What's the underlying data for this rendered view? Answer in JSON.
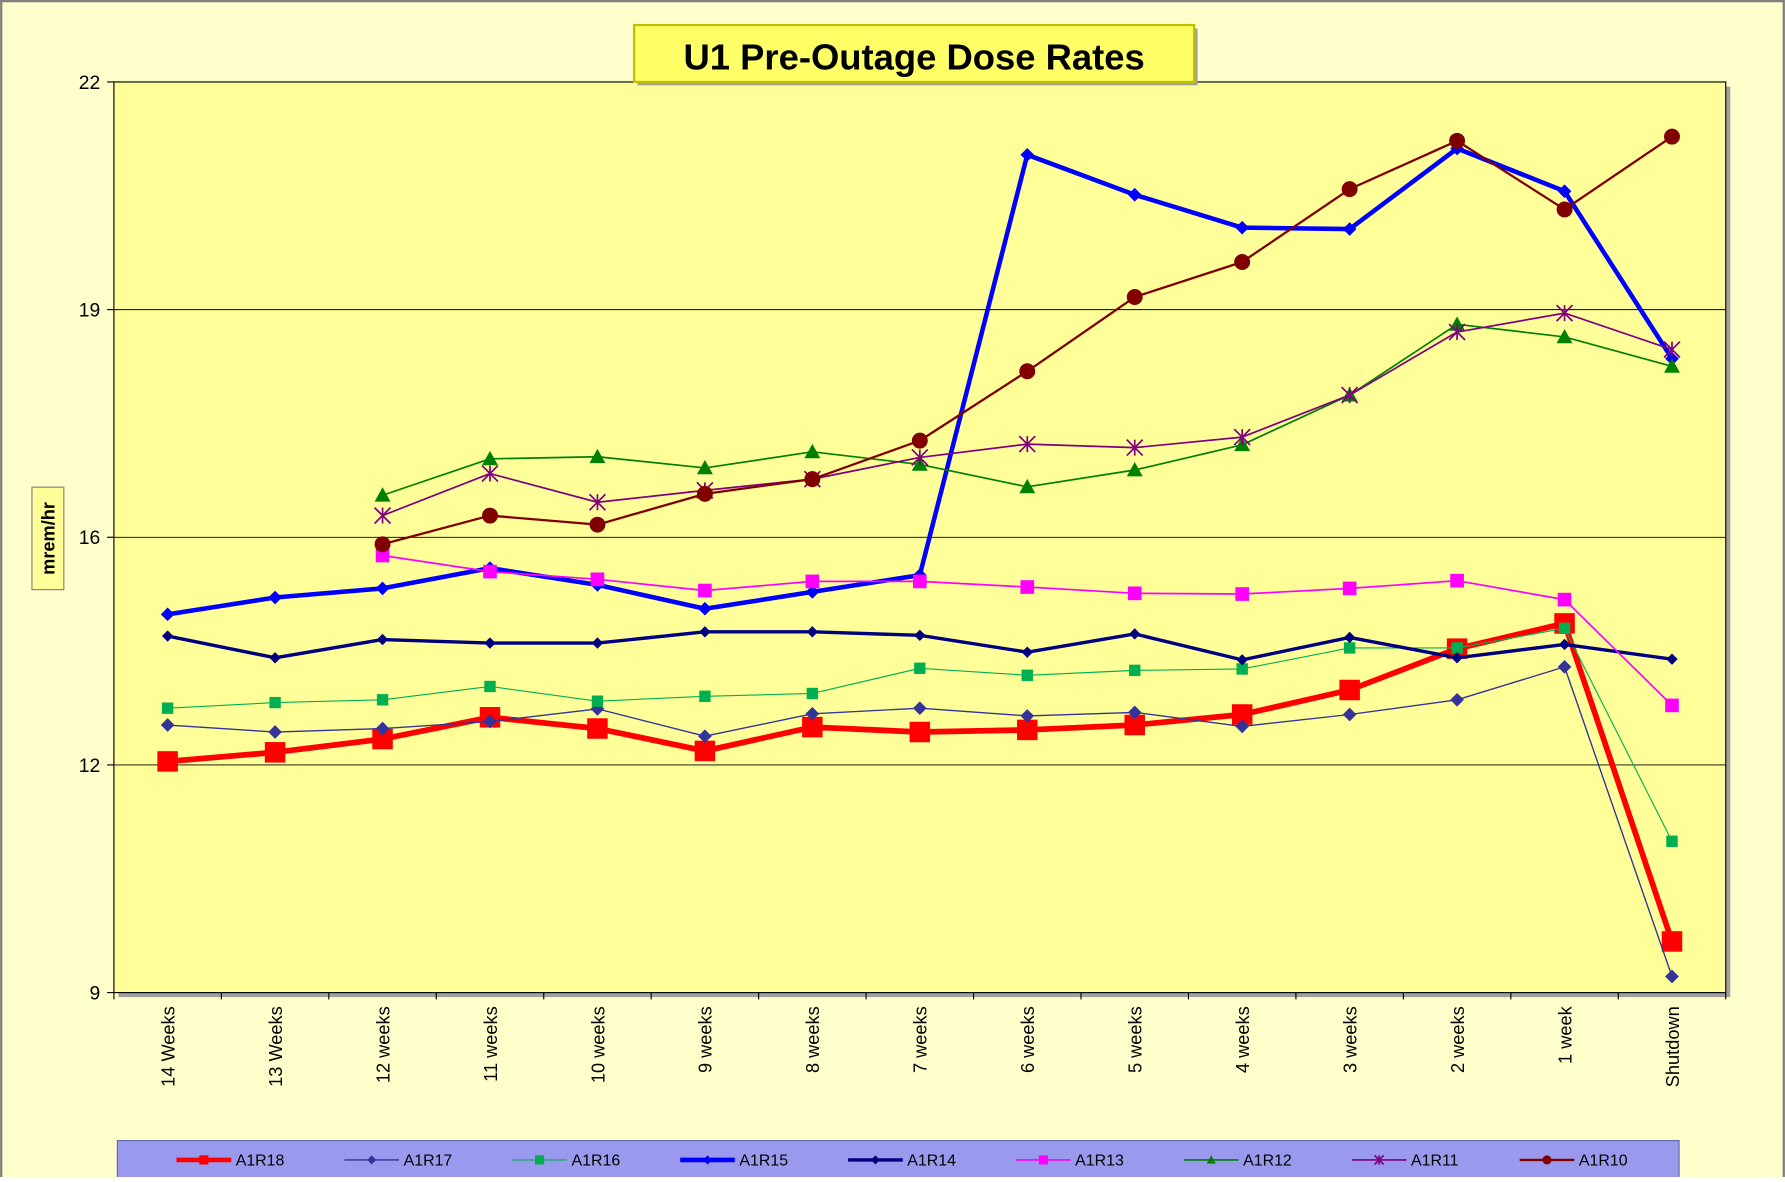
{
  "chart_data": {
    "type": "line",
    "title": "U1 Pre-Outage Dose Rates",
    "y_label": "mrem/hr",
    "categories": [
      "14 Weeks",
      "13 Weeks",
      "12 weeks",
      "11 weeks",
      "10 weeks",
      "9 weeks",
      "8 weeks",
      "7 weeks",
      "6 weeks",
      "5 weeks",
      "4 weeks",
      "3 weeks",
      "2 weeks",
      "1 week",
      "Shutdown"
    ],
    "ylim": [
      9,
      22
    ],
    "yticks": [
      9,
      {
        "value": 12.25,
        "label": "12"
      },
      {
        "value": 15.5,
        "label": "16"
      },
      {
        "value": 18.75,
        "label": "19"
      },
      22
    ],
    "grid": true,
    "series": [
      {
        "name": "A1R18",
        "color": "#ff0000",
        "marker": "square",
        "values": [
          12.3,
          12.43,
          12.62,
          12.93,
          12.77,
          12.45,
          12.79,
          12.72,
          12.75,
          12.82,
          12.97,
          13.32,
          13.91,
          14.27,
          9.73
        ]
      },
      {
        "name": "A1R17",
        "color": "#333399",
        "marker": "diamond",
        "values": [
          12.82,
          12.72,
          12.77,
          12.87,
          13.05,
          12.66,
          12.98,
          13.06,
          12.95,
          13.0,
          12.8,
          12.97,
          13.18,
          13.65,
          9.23
        ]
      },
      {
        "name": "A1R16",
        "color": "#00b050",
        "marker": "square",
        "values": [
          13.06,
          13.14,
          13.18,
          13.37,
          13.16,
          13.23,
          13.27,
          13.63,
          13.53,
          13.6,
          13.62,
          13.92,
          13.92,
          14.2,
          11.16
        ]
      },
      {
        "name": "A1R15",
        "color": "#0000ff",
        "marker": "diamond",
        "values": [
          14.4,
          14.64,
          14.77,
          15.06,
          14.82,
          14.48,
          14.72,
          14.96,
          20.96,
          20.39,
          19.92,
          19.9,
          21.05,
          20.44,
          18.05
        ]
      },
      {
        "name": "A1R14",
        "color": "#000080",
        "marker": "diamond",
        "values": [
          14.09,
          13.78,
          14.04,
          13.99,
          13.99,
          14.15,
          14.15,
          14.1,
          13.86,
          14.12,
          13.75,
          14.07,
          13.78,
          13.97,
          13.76
        ]
      },
      {
        "name": "A1R13",
        "color": "#ff00ff",
        "marker": "square",
        "values": [
          null,
          null,
          15.24,
          15.01,
          14.9,
          14.74,
          14.87,
          14.87,
          14.79,
          14.7,
          14.69,
          14.77,
          14.88,
          14.61,
          13.1
        ]
      },
      {
        "name": "A1R12",
        "color": "#008000",
        "marker": "triangle",
        "values": [
          null,
          null,
          16.1,
          16.62,
          16.65,
          16.49,
          16.72,
          16.54,
          16.22,
          16.46,
          16.82,
          17.53,
          18.54,
          18.36,
          17.94
        ]
      },
      {
        "name": "A1R11",
        "color": "#800080",
        "marker": "star",
        "values": [
          null,
          null,
          15.81,
          16.41,
          16.0,
          16.17,
          16.33,
          16.64,
          16.83,
          16.78,
          16.93,
          17.53,
          18.43,
          18.7,
          18.18
        ]
      },
      {
        "name": "A1R10",
        "color": "#800000",
        "marker": "circle",
        "values": [
          null,
          null,
          15.4,
          15.81,
          15.68,
          16.12,
          16.33,
          16.88,
          17.87,
          18.93,
          19.43,
          20.47,
          21.16,
          20.18,
          21.22
        ]
      }
    ]
  }
}
